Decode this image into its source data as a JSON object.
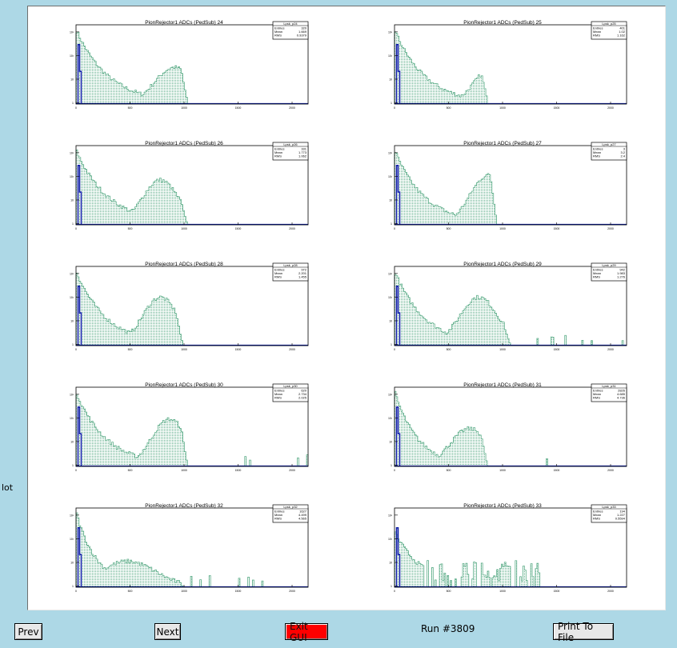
{
  "side_label": "lot",
  "buttons": {
    "prev": "Prev",
    "next": "Next",
    "exit": "Exit GUI",
    "print": "Print To File"
  },
  "run_label": "Run #3809",
  "colors": {
    "background": "#add8e6",
    "fill_hist": "#5fae8a",
    "line_hist": "#0a1aa6",
    "exit_button": "#ff0000"
  },
  "chart_data": [
    {
      "type": "bar",
      "title": "PionRejector1 ADCs (PedSub) 24",
      "stats": {
        "name": "Lpsk_p24",
        "entries": "320",
        "mean": "1.669",
        "rms": "0.9379"
      },
      "x_ticks": [
        "0",
        "500",
        "1000",
        "1500",
        "2000"
      ],
      "y_ticks": [
        "1",
        "10",
        "10²",
        "10³"
      ],
      "ylog": true,
      "shape": {
        "peak": "3.1",
        "decay": "0.14",
        "bump": "1.55",
        "bump_center": "0.42",
        "bump_width": "0.14",
        "end": "0.48"
      }
    },
    {
      "type": "bar",
      "title": "PionRejector1 ADCs (PedSub) 25",
      "stats": {
        "name": "Lpsk_p25",
        "entries": "401",
        "mean": "1.02",
        "rms": "1.162"
      },
      "x_ticks": [
        "0",
        "500",
        "1000",
        "1500",
        "2000"
      ],
      "y_ticks": [
        "1",
        "10",
        "10²",
        "10³"
      ],
      "ylog": true,
      "shape": {
        "peak": "3.1",
        "decay": "0.13",
        "bump": "1.55",
        "bump_center": "0.42",
        "bump_width": "0.13",
        "end": "0.4"
      }
    },
    {
      "type": "bar",
      "title": "PionRejector1 ADCs (PedSub) 26",
      "stats": {
        "name": "Lpsk_p26",
        "entries": "331",
        "mean": "1.773",
        "rms": "1.062"
      },
      "x_ticks": [
        "0",
        "500",
        "1000",
        "1500",
        "2000"
      ],
      "y_ticks": [
        "1",
        "10",
        "10²",
        "10³"
      ],
      "ylog": true,
      "shape": {
        "peak": "3.1",
        "decay": "0.14",
        "bump": "1.9",
        "bump_center": "0.36",
        "bump_width": "0.13",
        "end": "0.48"
      }
    },
    {
      "type": "bar",
      "title": "PionRejector1 ADCs (PedSub) 27",
      "stats": {
        "name": "Lpsk_p27",
        "entries": "3",
        "mean": "3.2",
        "rms": "2.4"
      },
      "x_ticks": [
        "0",
        "500",
        "1000",
        "1500",
        "2000"
      ],
      "y_ticks": [
        "1",
        "10",
        "10²",
        "10³"
      ],
      "ylog": true,
      "shape": {
        "peak": "3.1",
        "decay": "0.13",
        "bump": "2.1",
        "bump_center": "0.4",
        "bump_width": "0.13",
        "end": "0.44"
      }
    },
    {
      "type": "bar",
      "title": "PionRejector1 ADCs (PedSub) 28",
      "stats": {
        "name": "Lpsk_p28",
        "entries": "972",
        "mean": "2.201",
        "rms": "1.455"
      },
      "x_ticks": [
        "0",
        "500",
        "1000",
        "1500",
        "2000"
      ],
      "y_ticks": [
        "1",
        "10",
        "10²",
        "10³"
      ],
      "ylog": true,
      "shape": {
        "peak": "3.1",
        "decay": "0.13",
        "bump": "2.05",
        "bump_center": "0.36",
        "bump_width": "0.13",
        "end": "0.46"
      }
    },
    {
      "type": "bar",
      "title": "PionRejector1 ADCs (PedSub) 29",
      "stats": {
        "name": "Lpsk_p29",
        "entries": "942",
        "mean": "1.983",
        "rms": "1.276"
      },
      "x_ticks": [
        "0",
        "500",
        "1000",
        "1500",
        "2000"
      ],
      "y_ticks": [
        "1",
        "10",
        "10²",
        "10³"
      ],
      "ylog": true,
      "shape": {
        "peak": "3.1",
        "decay": "0.13",
        "bump": "2.05",
        "bump_center": "0.36",
        "bump_width": "0.14",
        "end": "0.5"
      }
    },
    {
      "type": "bar",
      "title": "PionRejector1 ADCs (PedSub) 30",
      "stats": {
        "name": "Lpsk_p30",
        "entries": "620",
        "mean": "2.734",
        "rms": "2.025"
      },
      "x_ticks": [
        "0",
        "500",
        "1000",
        "1500",
        "2000"
      ],
      "y_ticks": [
        "1",
        "10",
        "10²",
        "10³"
      ],
      "ylog": true,
      "shape": {
        "peak": "3.1",
        "decay": "0.13",
        "bump": "2.0",
        "bump_center": "0.4",
        "bump_width": "0.13",
        "end": "0.48"
      }
    },
    {
      "type": "bar",
      "title": "PionRejector1 ADCs (PedSub) 31",
      "stats": {
        "name": "Lpsk_p31",
        "entries": "2826",
        "mean": "4.685",
        "rms": "4.736"
      },
      "x_ticks": [
        "0",
        "500",
        "1000",
        "1500",
        "2000"
      ],
      "y_ticks": [
        "1",
        "10",
        "10²",
        "10³"
      ],
      "ylog": true,
      "shape": {
        "peak": "3.1",
        "decay": "0.1",
        "bump": "1.6",
        "bump_center": "0.32",
        "bump_width": "0.14",
        "end": "0.4"
      }
    },
    {
      "type": "bar",
      "title": "PionRejector1 ADCs (PedSub) 32",
      "stats": {
        "name": "Lpsk_p32",
        "entries": "1627",
        "mean": "4.499",
        "rms": "4.565"
      },
      "x_ticks": [
        "0",
        "500",
        "1000",
        "1500",
        "2000"
      ],
      "y_ticks": [
        "1",
        "10",
        "10²",
        "10³"
      ],
      "ylog": true,
      "shape": {
        "peak": "3.1",
        "decay": "0.09",
        "bump": "1.1",
        "bump_center": "0.22",
        "bump_width": "0.2",
        "end": "0.47"
      }
    },
    {
      "type": "bar",
      "title": "PionRejector1 ADCs (PedSub) 33",
      "stats": {
        "name": "Lpsk_p33",
        "entries": "194",
        "mean": "1.227",
        "rms": "0.5594"
      },
      "x_ticks": [
        "0",
        "500",
        "1000",
        "1500",
        "2000"
      ],
      "y_ticks": [
        "1",
        "10",
        "10²",
        "10³"
      ],
      "ylog": true,
      "shape": {
        "peak": "2.3",
        "decay": "0.12",
        "bump": "0.5",
        "bump_center": "0.3",
        "bump_width": "0.2",
        "end": "0.62"
      }
    }
  ]
}
